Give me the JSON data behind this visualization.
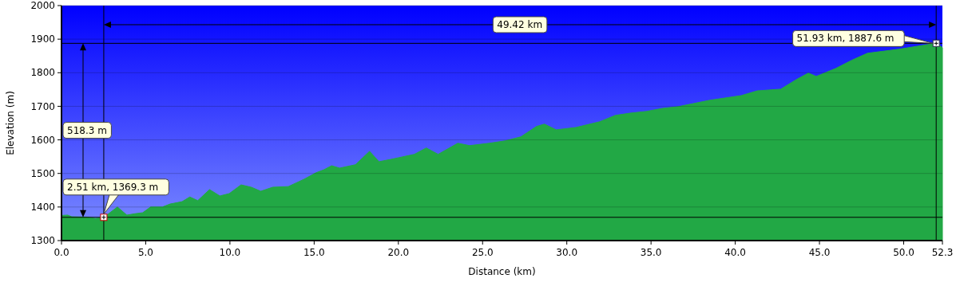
{
  "chart_data": {
    "type": "area",
    "xlabel": "Distance (km)",
    "ylabel": "Elevation (m)",
    "x": [
      0,
      0.37,
      0.61,
      1.54,
      2.01,
      2.51,
      3.32,
      3.88,
      4.35,
      4.82,
      5.29,
      5.99,
      6.45,
      7.16,
      7.62,
      8.09,
      8.79,
      9.4,
      9.96,
      10.66,
      11.27,
      11.83,
      12.54,
      13.47,
      14.41,
      15.11,
      15.58,
      16.04,
      16.51,
      17.45,
      18.29,
      18.85,
      19.55,
      20.02,
      20.95,
      21.66,
      22.36,
      23.53,
      24.23,
      25.4,
      26.33,
      27.27,
      28.2,
      28.67,
      29.37,
      30.54,
      31.95,
      32.88,
      33.82,
      34.75,
      35.69,
      36.62,
      38.49,
      40.36,
      41.3,
      42.7,
      43.64,
      44.34,
      44.81,
      45.98,
      46.91,
      47.85,
      49.72,
      51.93,
      52.3
    ],
    "series": [
      {
        "color": "#22a845",
        "values": [
          1375,
          1376,
          1371,
          1370,
          1366,
          1369,
          1400,
          1376,
          1380,
          1383,
          1400,
          1400,
          1409,
          1416,
          1430,
          1419,
          1452,
          1433,
          1440,
          1466,
          1459,
          1447,
          1459,
          1461,
          1483,
          1502,
          1511,
          1523,
          1516,
          1526,
          1566,
          1535,
          1542,
          1547,
          1557,
          1576,
          1557,
          1590,
          1583,
          1590,
          1597,
          1609,
          1640,
          1647,
          1630,
          1637,
          1654,
          1673,
          1680,
          1685,
          1694,
          1699,
          1718,
          1732,
          1746,
          1751,
          1780,
          1799,
          1789,
          1813,
          1837,
          1858,
          1870,
          1888,
          1875
        ]
      }
    ],
    "xlim": [
      0,
      52.3
    ],
    "xticks": [
      {
        "value": 0,
        "label": "0.0"
      },
      {
        "value": 5,
        "label": "5.0"
      },
      {
        "value": 10,
        "label": "10.0"
      },
      {
        "value": 15,
        "label": "15.0"
      },
      {
        "value": 20,
        "label": "20.0"
      },
      {
        "value": 25,
        "label": "25.0"
      },
      {
        "value": 30,
        "label": "30.0"
      },
      {
        "value": 35,
        "label": "35.0"
      },
      {
        "value": 40,
        "label": "40.0"
      },
      {
        "value": 45,
        "label": "45.0"
      },
      {
        "value": 50,
        "label": "50.0"
      },
      {
        "value": 52.3,
        "label": "52.3"
      }
    ],
    "ylim": [
      1300,
      2000
    ],
    "yticks": [
      1300,
      1400,
      1500,
      1600,
      1700,
      1800,
      1900,
      2000
    ],
    "grid": "y",
    "ref_lines": [
      {
        "axis": "x",
        "value": 2.51,
        "color": "#000000"
      },
      {
        "axis": "x",
        "value": 51.93,
        "color": "#000000"
      },
      {
        "axis": "y",
        "value": 1369.3,
        "color": "#000000"
      },
      {
        "axis": "y",
        "value": 1887.6,
        "color": "#000000"
      }
    ],
    "annotations": [
      {
        "text": "2.51 km, 1369.3 m",
        "x": 2.51,
        "y": 1369.3
      },
      {
        "text": "51.93 km, 1887.6 m",
        "x": 51.93,
        "y": 1887.6
      },
      "49.42 km",
      "518.3 m"
    ]
  }
}
